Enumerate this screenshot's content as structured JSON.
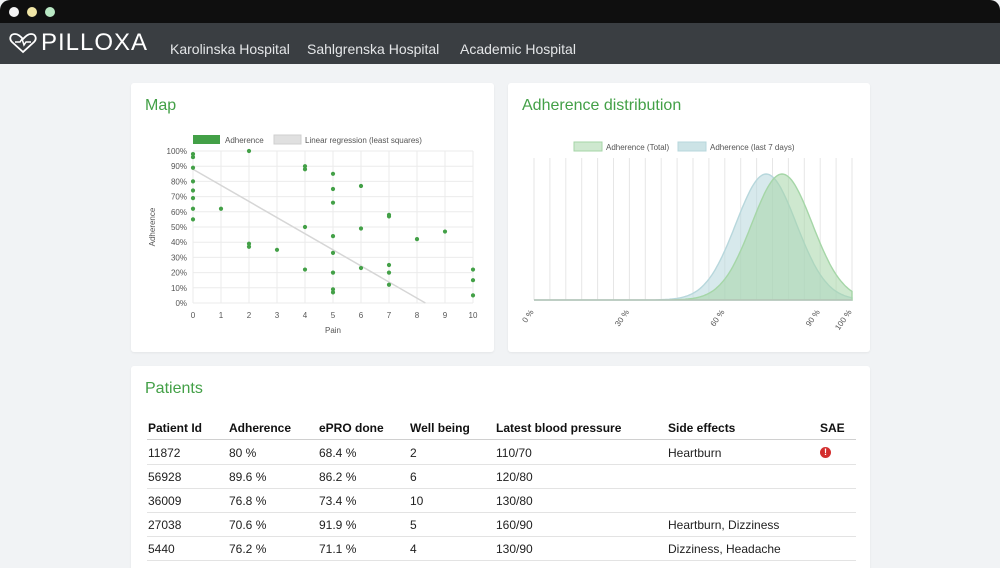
{
  "app": {
    "name": "PILLOXA"
  },
  "nav": {
    "links": [
      "Karolinska Hospital",
      "Sahlgrenska Hospital",
      "Academic Hospital"
    ]
  },
  "map_card": {
    "title": "Map"
  },
  "dist_card": {
    "title": "Adherence distribution"
  },
  "patients_card": {
    "title": "Patients"
  },
  "colors": {
    "accent": "#43a047",
    "navbar": "#3a3e42",
    "sae": "#d32f2f"
  },
  "chart_data": [
    {
      "type": "scatter",
      "title": "",
      "xlabel": "Pain",
      "ylabel": "Adherence",
      "xlim": [
        0,
        10
      ],
      "ylim": [
        0,
        100
      ],
      "x_ticks": [
        "0",
        "1",
        "2",
        "3",
        "4",
        "5",
        "6",
        "7",
        "8",
        "9",
        "10"
      ],
      "y_ticks": [
        "0%",
        "10%",
        "20%",
        "30%",
        "40%",
        "50%",
        "60%",
        "70%",
        "80%",
        "90%",
        "100%"
      ],
      "grid": true,
      "legend": {
        "placement": "top",
        "entries": [
          "Adherence",
          "Linear regression (least squares)"
        ]
      },
      "series": [
        {
          "name": "Adherence",
          "color": "#43a047",
          "points": [
            [
              0,
              98
            ],
            [
              0,
              96
            ],
            [
              0,
              89
            ],
            [
              0,
              80
            ],
            [
              0,
              74
            ],
            [
              0,
              69
            ],
            [
              0,
              62
            ],
            [
              0,
              55
            ],
            [
              1,
              62
            ],
            [
              2,
              100
            ],
            [
              2,
              39
            ],
            [
              2,
              37
            ],
            [
              3,
              35
            ],
            [
              4,
              90
            ],
            [
              4,
              88
            ],
            [
              4,
              50
            ],
            [
              4,
              22
            ],
            [
              5,
              85
            ],
            [
              5,
              75
            ],
            [
              5,
              66
            ],
            [
              5,
              44
            ],
            [
              5,
              33
            ],
            [
              5,
              20
            ],
            [
              5,
              9
            ],
            [
              5,
              7
            ],
            [
              6,
              77
            ],
            [
              6,
              49
            ],
            [
              6,
              23
            ],
            [
              7,
              58
            ],
            [
              7,
              57
            ],
            [
              7,
              25
            ],
            [
              7,
              20
            ],
            [
              7,
              12
            ],
            [
              8,
              42
            ],
            [
              9,
              47
            ],
            [
              10,
              22
            ],
            [
              10,
              15
            ],
            [
              10,
              5
            ]
          ]
        },
        {
          "name": "Linear regression (least squares)",
          "color": "#d6d6d6",
          "points": [
            [
              0,
              88
            ],
            [
              8.3,
              0
            ]
          ]
        }
      ]
    },
    {
      "type": "area",
      "title": "",
      "x_ticks": [
        "0 %",
        "30 %",
        "60 %",
        "90 %",
        "100 %"
      ],
      "xlim": [
        0,
        100
      ],
      "legend": {
        "placement": "top",
        "entries": [
          "Adherence (Total)",
          "Adherence (last 7 days)"
        ]
      },
      "series": [
        {
          "name": "Adherence (Total)",
          "color": "#a5d6a7",
          "mean": 78,
          "sd": 9.5
        },
        {
          "name": "Adherence (last 7 days)",
          "color": "#b7d7dc",
          "mean": 73,
          "sd": 9.5
        }
      ]
    }
  ],
  "table": {
    "columns": [
      "Patient Id",
      "Adherence",
      "ePRO done",
      "Well being",
      "Latest blood pressure",
      "Side effects",
      "SAE"
    ],
    "rows": [
      {
        "id": "11872",
        "adherence": "80 %",
        "epro": "68.4 %",
        "well": "2",
        "bp": "110/70",
        "side": "Heartburn",
        "sae": "!"
      },
      {
        "id": "56928",
        "adherence": "89.6 %",
        "epro": "86.2 %",
        "well": "6",
        "bp": "120/80",
        "side": "",
        "sae": ""
      },
      {
        "id": "36009",
        "adherence": "76.8 %",
        "epro": "73.4 %",
        "well": "10",
        "bp": "130/80",
        "side": "",
        "sae": ""
      },
      {
        "id": "27038",
        "adherence": "70.6 %",
        "epro": "91.9 %",
        "well": "5",
        "bp": "160/90",
        "side": "Heartburn, Dizziness",
        "sae": ""
      },
      {
        "id": "5440",
        "adherence": "76.2 %",
        "epro": "71.1 %",
        "well": "4",
        "bp": "130/90",
        "side": "Dizziness, Headache",
        "sae": ""
      }
    ]
  }
}
